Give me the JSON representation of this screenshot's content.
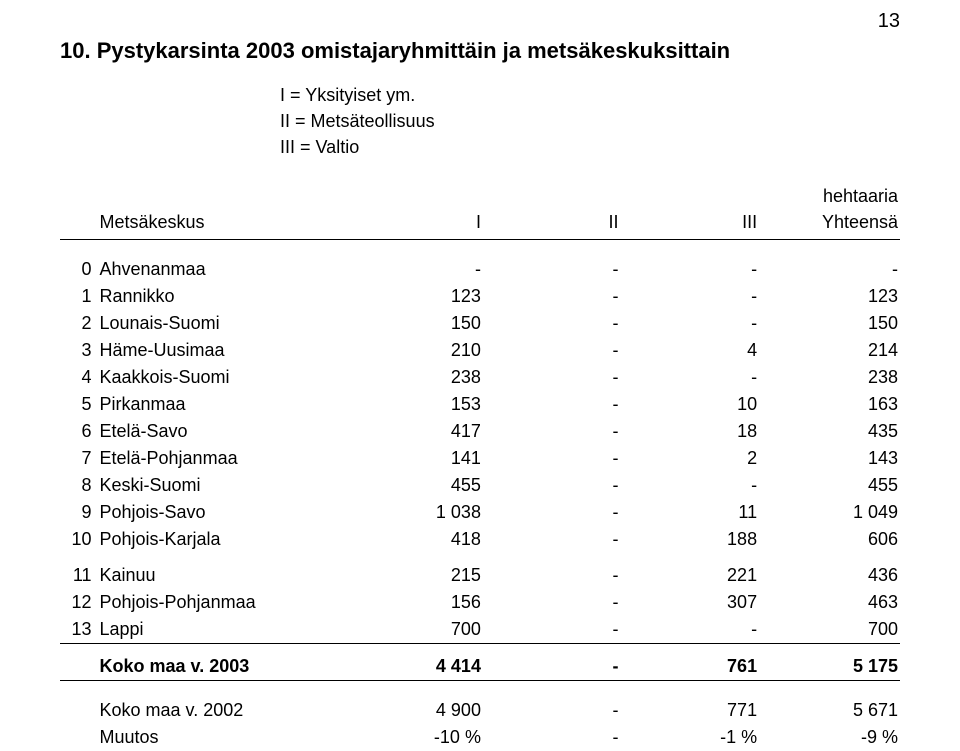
{
  "page_number": "13",
  "title": "10.  Pystykarsinta 2003 omistajaryhmittäin ja metsäkeskuksittain",
  "legend": {
    "l1": "I   = Yksityiset ym.",
    "l2": "II  = Metsäteollisuus",
    "l3": "III = Valtio"
  },
  "unit_label": "hehtaaria",
  "header": {
    "name": "Metsäkeskus",
    "c1": "I",
    "c2": "II",
    "c3": "III",
    "c4": "Yhteensä"
  },
  "rows_a": [
    {
      "idx": "0",
      "name": "Ahvenanmaa",
      "v": [
        "-",
        "-",
        "-",
        "-"
      ]
    },
    {
      "idx": "1",
      "name": "Rannikko",
      "v": [
        "123",
        "-",
        "-",
        "123"
      ]
    },
    {
      "idx": "2",
      "name": "Lounais-Suomi",
      "v": [
        "150",
        "-",
        "-",
        "150"
      ]
    },
    {
      "idx": "3",
      "name": "Häme-Uusimaa",
      "v": [
        "210",
        "-",
        "4",
        "214"
      ]
    },
    {
      "idx": "4",
      "name": "Kaakkois-Suomi",
      "v": [
        "238",
        "-",
        "-",
        "238"
      ]
    },
    {
      "idx": "5",
      "name": "Pirkanmaa",
      "v": [
        "153",
        "-",
        "10",
        "163"
      ]
    },
    {
      "idx": "6",
      "name": "Etelä-Savo",
      "v": [
        "417",
        "-",
        "18",
        "435"
      ]
    },
    {
      "idx": "7",
      "name": "Etelä-Pohjanmaa",
      "v": [
        "141",
        "-",
        "2",
        "143"
      ]
    },
    {
      "idx": "8",
      "name": "Keski-Suomi",
      "v": [
        "455",
        "-",
        "-",
        "455"
      ]
    },
    {
      "idx": "9",
      "name": "Pohjois-Savo",
      "v": [
        "1 038",
        "-",
        "11",
        "1 049"
      ]
    },
    {
      "idx": "10",
      "name": "Pohjois-Karjala",
      "v": [
        "418",
        "-",
        "188",
        "606"
      ]
    }
  ],
  "rows_b": [
    {
      "idx": "11",
      "name": "Kainuu",
      "v": [
        "215",
        "-",
        "221",
        "436"
      ]
    },
    {
      "idx": "12",
      "name": "Pohjois-Pohjanmaa",
      "v": [
        "156",
        "-",
        "307",
        "463"
      ]
    },
    {
      "idx": "13",
      "name": "Lappi",
      "v": [
        "700",
        "-",
        "-",
        "700"
      ]
    }
  ],
  "total_row": {
    "idx": "",
    "name": "Koko maa v. 2003",
    "v": [
      "4 414",
      "-",
      "761",
      "5 175"
    ]
  },
  "footer_rows": [
    {
      "idx": "",
      "name": "Koko maa v. 2002",
      "v": [
        "4 900",
        "-",
        "771",
        "5 671"
      ]
    },
    {
      "idx": "",
      "name": "Muutos",
      "v": [
        "-10 %",
        "-",
        "-1 %",
        "-9 %"
      ]
    }
  ]
}
